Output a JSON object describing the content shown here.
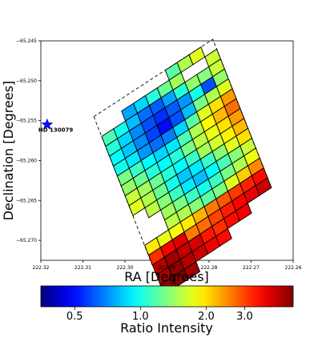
{
  "chart_data": {
    "type": "heatmap",
    "xlabel": "RA [Degrees]",
    "ylabel": "Declination [Degrees]",
    "xlim": [
      222.32,
      222.26
    ],
    "ylim": [
      -65.2725,
      -65.245
    ],
    "x_ticks": [
      "222.32",
      "222.31",
      "222.30",
      "222.29",
      "222.28",
      "222.27",
      "222.26"
    ],
    "y_ticks": [
      "−65.245",
      "−65.250",
      "−65.255",
      "−65.260",
      "−65.265",
      "−65.270"
    ],
    "annotation": {
      "label": "HD 130079",
      "marker": "blue-star",
      "ra": 222.3185,
      "dec": -65.2555
    },
    "grid_origin": {
      "ra": 222.3074,
      "dec": -65.2545
    },
    "grid_step_col": {
      "dra": -0.00283,
      "ddec": 0.00097
    },
    "grid_step_row": {
      "dra": -0.00093,
      "ddec": -0.00124
    },
    "cells": [
      [
        null,
        null,
        null,
        null,
        null,
        null,
        1.2,
        1.5,
        1.7,
        null
      ],
      [
        null,
        null,
        0.75,
        0.85,
        1.05,
        1.25,
        1.45,
        null,
        null,
        1.6
      ],
      [
        1.15,
        1.0,
        0.8,
        0.65,
        0.62,
        0.75,
        1.05,
        1.4,
        1.35,
        1.6
      ],
      [
        1.05,
        0.85,
        0.7,
        0.6,
        0.55,
        0.62,
        0.72,
        1.0,
        0.6,
        1.4
      ],
      [
        0.95,
        0.82,
        0.7,
        0.58,
        0.5,
        0.6,
        0.8,
        1.3,
        1.5,
        1.7
      ],
      [
        1.0,
        0.9,
        0.72,
        0.65,
        0.68,
        0.85,
        1.2,
        1.7,
        2.0,
        2.4
      ],
      [
        1.3,
        1.1,
        0.95,
        0.85,
        0.9,
        1.15,
        1.5,
        1.85,
        2.2,
        2.7
      ],
      [
        1.4,
        1.25,
        1.05,
        0.95,
        1.05,
        1.3,
        1.55,
        1.75,
        2.0,
        2.4
      ],
      [
        1.6,
        1.45,
        1.25,
        1.05,
        0.95,
        1.1,
        1.45,
        1.65,
        1.9,
        2.2
      ],
      [
        1.7,
        1.5,
        1.25,
        1.0,
        0.82,
        0.9,
        1.1,
        1.35,
        1.7,
        2.0
      ],
      [
        null,
        1.55,
        1.35,
        1.1,
        0.9,
        0.8,
        0.95,
        1.15,
        1.35,
        1.6
      ],
      [
        null,
        null,
        1.45,
        1.3,
        1.1,
        1.0,
        1.1,
        1.3,
        1.5,
        1.75
      ],
      [
        null,
        null,
        1.55,
        1.5,
        1.35,
        1.2,
        1.3,
        1.7,
        2.1,
        2.5
      ],
      [
        1.95,
        1.75,
        1.8,
        1.95,
        2.25,
        2.6,
        2.85,
        3.1,
        3.3,
        3.5
      ],
      [
        3.2,
        3.6,
        3.9,
        2.6,
        2.7,
        3.0,
        3.35,
        3.6,
        3.8,
        4.1
      ],
      [
        4.3,
        4.6,
        4.2,
        4.0,
        3.4,
        3.2,
        3.5,
        3.7,
        null,
        null
      ],
      [
        4.5,
        4.8,
        4.4,
        4.1,
        3.7,
        3.5,
        null,
        null,
        null,
        null
      ],
      [
        4.7,
        4.9,
        4.6,
        null,
        null,
        null,
        null,
        null,
        null,
        null
      ]
    ],
    "dashed_outline": [
      {
        "ra": 222.3074,
        "dec": -65.2545
      },
      {
        "ra": 222.2791,
        "dec": -65.2448
      },
      {
        "ra": 222.2652,
        "dec": -65.2634
      },
      {
        "ra": 222.2935,
        "dec": -65.2731
      }
    ],
    "colorbar": {
      "label": "Ratio Intensity",
      "ticks": [
        {
          "value": 0.5,
          "label": "0.5"
        },
        {
          "value": 1.0,
          "label": "1.0"
        },
        {
          "value": 2.0,
          "label": "2.0"
        },
        {
          "value": 3.0,
          "label": "3.0"
        }
      ],
      "min": 0.35,
      "max": 5.0,
      "scale": "log",
      "colormap": "jet"
    }
  }
}
